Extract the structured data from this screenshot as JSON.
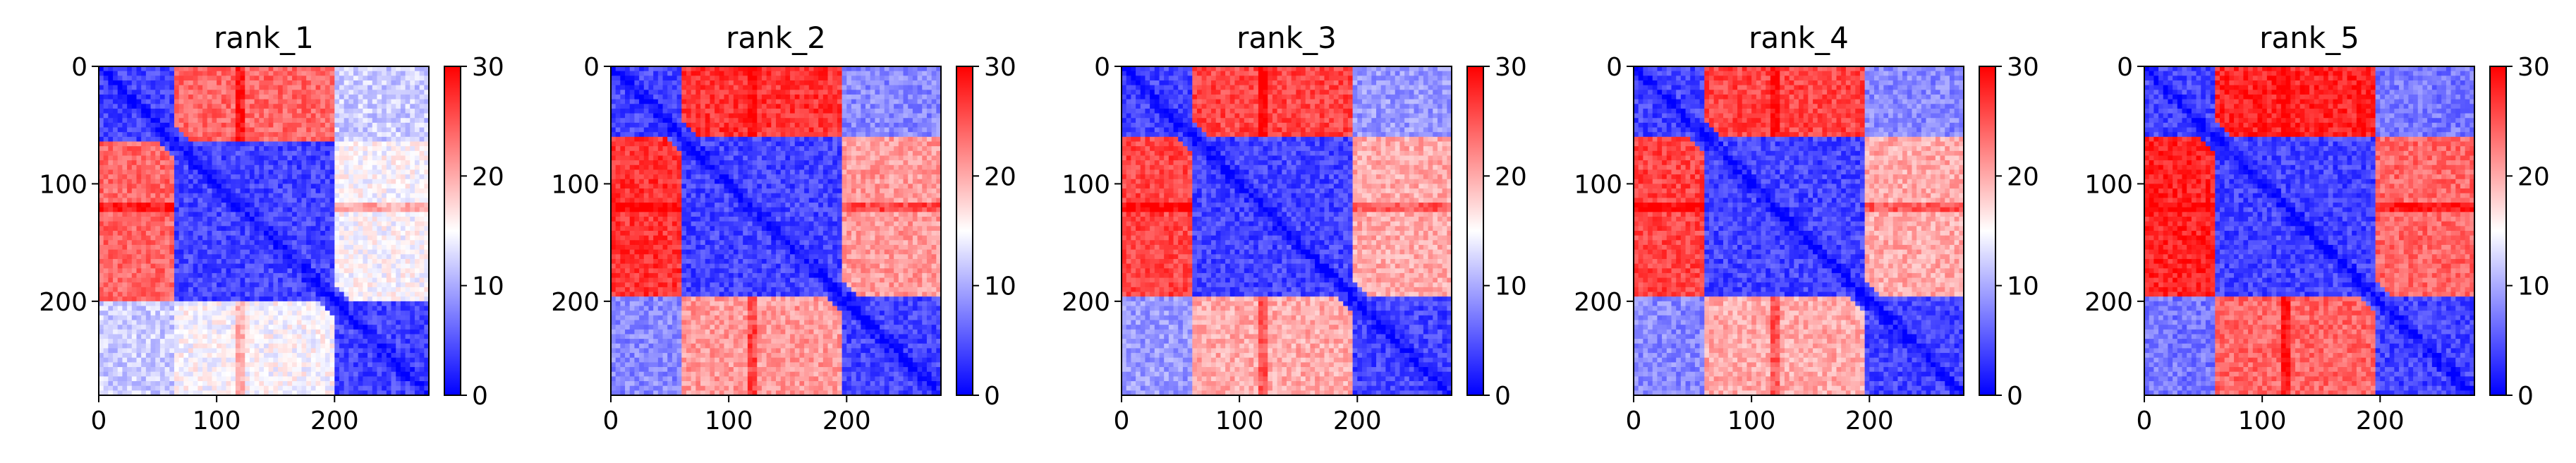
{
  "chart_data": [
    {
      "type": "heatmap",
      "title": "rank_1",
      "matrix_size": 280,
      "x_ticks": [
        0,
        100,
        200
      ],
      "y_ticks": [
        0,
        100,
        200
      ],
      "xlim": [
        0,
        280
      ],
      "ylim": [
        280,
        0
      ],
      "colorbar": {
        "min": 0,
        "max": 30,
        "ticks": [
          0,
          10,
          20,
          30
        ],
        "colormap": [
          "#0000ff",
          "#ffffff",
          "#ff0000"
        ]
      },
      "domains": [
        [
          0,
          65
        ],
        [
          65,
          200
        ],
        [
          200,
          280
        ]
      ],
      "block_values": [
        [
          4,
          24,
          12
        ],
        [
          24,
          4,
          15
        ],
        [
          12,
          15,
          4
        ]
      ],
      "hot_band": 120
    },
    {
      "type": "heatmap",
      "title": "rank_2",
      "matrix_size": 280,
      "x_ticks": [
        0,
        100,
        200
      ],
      "y_ticks": [
        0,
        100,
        200
      ],
      "xlim": [
        0,
        280
      ],
      "ylim": [
        280,
        0
      ],
      "colorbar": {
        "min": 0,
        "max": 30,
        "ticks": [
          0,
          10,
          20,
          30
        ],
        "colormap": [
          "#0000ff",
          "#ffffff",
          "#ff0000"
        ]
      },
      "domains": [
        [
          0,
          60
        ],
        [
          60,
          195
        ],
        [
          195,
          280
        ]
      ],
      "block_values": [
        [
          4,
          27,
          8
        ],
        [
          27,
          4,
          21
        ],
        [
          8,
          21,
          4
        ]
      ],
      "hot_band": 120
    },
    {
      "type": "heatmap",
      "title": "rank_3",
      "matrix_size": 280,
      "x_ticks": [
        0,
        100,
        200
      ],
      "y_ticks": [
        0,
        100,
        200
      ],
      "xlim": [
        0,
        280
      ],
      "ylim": [
        280,
        0
      ],
      "colorbar": {
        "min": 0,
        "max": 30,
        "ticks": [
          0,
          10,
          20,
          30
        ],
        "colormap": [
          "#0000ff",
          "#ffffff",
          "#ff0000"
        ]
      },
      "domains": [
        [
          0,
          60
        ],
        [
          60,
          195
        ],
        [
          195,
          280
        ]
      ],
      "block_values": [
        [
          4,
          26,
          9
        ],
        [
          26,
          4,
          20
        ],
        [
          9,
          20,
          4
        ]
      ],
      "hot_band": 120
    },
    {
      "type": "heatmap",
      "title": "rank_4",
      "matrix_size": 280,
      "x_ticks": [
        0,
        100,
        200
      ],
      "y_ticks": [
        0,
        100,
        200
      ],
      "xlim": [
        0,
        280
      ],
      "ylim": [
        280,
        0
      ],
      "colorbar": {
        "min": 0,
        "max": 30,
        "ticks": [
          0,
          10,
          20,
          30
        ],
        "colormap": [
          "#0000ff",
          "#ffffff",
          "#ff0000"
        ]
      },
      "domains": [
        [
          0,
          60
        ],
        [
          60,
          195
        ],
        [
          195,
          280
        ]
      ],
      "block_values": [
        [
          4,
          26,
          8
        ],
        [
          26,
          4,
          20
        ],
        [
          8,
          20,
          4
        ]
      ],
      "hot_band": 120
    },
    {
      "type": "heatmap",
      "title": "rank_5",
      "matrix_size": 280,
      "x_ticks": [
        0,
        100,
        200
      ],
      "y_ticks": [
        0,
        100,
        200
      ],
      "xlim": [
        0,
        280
      ],
      "ylim": [
        280,
        0
      ],
      "colorbar": {
        "min": 0,
        "max": 30,
        "ticks": [
          0,
          10,
          20,
          30
        ],
        "colormap": [
          "#0000ff",
          "#ffffff",
          "#ff0000"
        ]
      },
      "domains": [
        [
          0,
          60
        ],
        [
          60,
          195
        ],
        [
          195,
          280
        ]
      ],
      "block_values": [
        [
          4,
          28,
          7
        ],
        [
          28,
          4,
          24
        ],
        [
          7,
          24,
          4
        ]
      ],
      "hot_band": 120
    }
  ]
}
